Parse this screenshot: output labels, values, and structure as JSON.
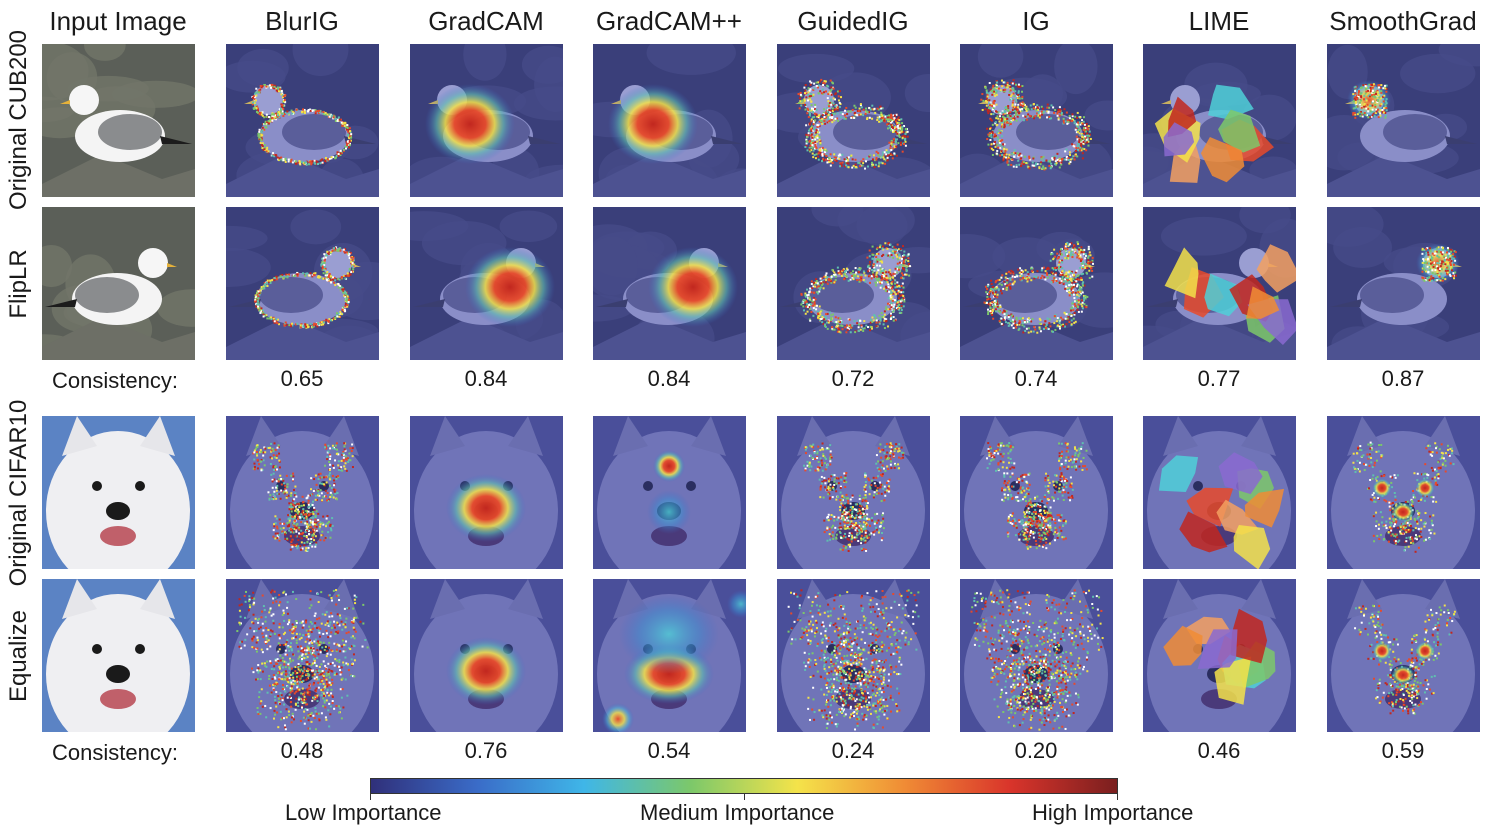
{
  "columns": [
    "Input Image",
    "BlurIG",
    "GradCAM",
    "GradCAM++",
    "GuidedIG",
    "IG",
    "LIME",
    "SmoothGrad"
  ],
  "rows": [
    {
      "label": "Original CUB200",
      "subject": "bird",
      "flip": false
    },
    {
      "label": "FlipLR",
      "subject": "bird",
      "flip": true
    },
    {
      "label": "Original CIFAR10",
      "subject": "dog",
      "flip": false
    },
    {
      "label": "Equalize",
      "subject": "dog",
      "flip": false
    }
  ],
  "consistency": [
    {
      "label": "Consistency:",
      "values": [
        "0.65",
        "0.84",
        "0.84",
        "0.72",
        "0.74",
        "0.77",
        "0.87"
      ]
    },
    {
      "label": "Consistency:",
      "values": [
        "0.48",
        "0.76",
        "0.54",
        "0.24",
        "0.20",
        "0.46",
        "0.59"
      ]
    }
  ],
  "colorbar": {
    "low": "Low Importance",
    "medium": "Medium Importance",
    "high": "High Importance",
    "colors": [
      "#30307a",
      "#3a6cc8",
      "#3fb6e8",
      "#7cc86a",
      "#f4e34a",
      "#f08c35",
      "#d9342b",
      "#7a1f1f"
    ]
  }
}
